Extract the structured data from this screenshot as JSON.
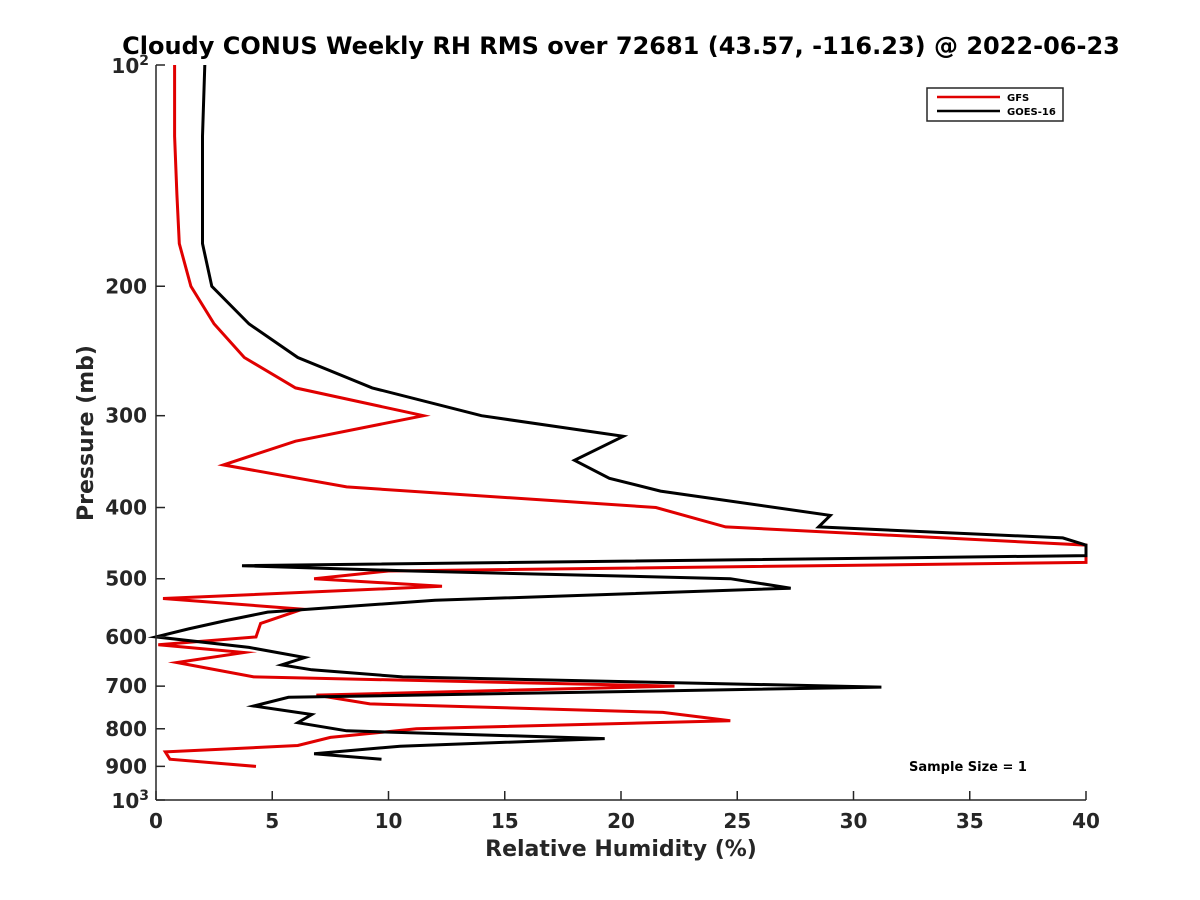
{
  "chart_data": {
    "type": "line",
    "title": "Cloudy CONUS Weekly RH RMS over 72681 (43.57, -116.23) @ 2022-06-23",
    "xlabel": "Relative Humidity (%)",
    "ylabel": "Pressure (mb)",
    "xlim": [
      0,
      40
    ],
    "ylim": [
      100,
      1000
    ],
    "yscale": "log",
    "y_reversed": true,
    "x_ticks": [
      "0",
      "5",
      "10",
      "15",
      "20",
      "25",
      "30",
      "35",
      "40"
    ],
    "y_ticks": [
      {
        "value": 200,
        "label": "200"
      },
      {
        "value": 300,
        "label": "300"
      },
      {
        "value": 400,
        "label": "400"
      },
      {
        "value": 500,
        "label": "500"
      },
      {
        "value": 600,
        "label": "600"
      },
      {
        "value": 700,
        "label": "700"
      },
      {
        "value": 800,
        "label": "800"
      },
      {
        "value": 900,
        "label": "900"
      }
    ],
    "y_end_labels": [
      {
        "value": 100,
        "base": "10",
        "exp": "2"
      },
      {
        "value": 1000,
        "base": "10",
        "exp": "3"
      }
    ],
    "legend_position": "top-right",
    "annotation": "Sample Size = 1",
    "series": [
      {
        "name": "GFS",
        "color": "#e00000",
        "points": [
          [
            0.8,
            100
          ],
          [
            0.8,
            125
          ],
          [
            0.9,
            150
          ],
          [
            1.0,
            175
          ],
          [
            1.5,
            200
          ],
          [
            2.5,
            225
          ],
          [
            3.8,
            250
          ],
          [
            6.0,
            275
          ],
          [
            11.5,
            300
          ],
          [
            6.0,
            325
          ],
          [
            2.9,
            350
          ],
          [
            8.2,
            375
          ],
          [
            21.5,
            400
          ],
          [
            24.5,
            425
          ],
          [
            40.0,
            450
          ],
          [
            40.0,
            475
          ],
          [
            10.0,
            488
          ],
          [
            6.8,
            500
          ],
          [
            12.3,
            512
          ],
          [
            0.3,
            532
          ],
          [
            6.3,
            550
          ],
          [
            4.5,
            575
          ],
          [
            4.3,
            600
          ],
          [
            0.1,
            615
          ],
          [
            3.8,
            630
          ],
          [
            0.9,
            650
          ],
          [
            4.2,
            680
          ],
          [
            22.3,
            700
          ],
          [
            6.9,
            720
          ],
          [
            9.2,
            740
          ],
          [
            21.8,
            760
          ],
          [
            24.7,
            780
          ],
          [
            11.2,
            800
          ],
          [
            7.5,
            822
          ],
          [
            6.1,
            843
          ],
          [
            0.4,
            860
          ],
          [
            0.6,
            880
          ],
          [
            4.3,
            900
          ]
        ]
      },
      {
        "name": "GOES-16",
        "color": "#000000",
        "points": [
          [
            2.1,
            100
          ],
          [
            2.0,
            125
          ],
          [
            2.0,
            150
          ],
          [
            2.0,
            175
          ],
          [
            2.4,
            200
          ],
          [
            4.0,
            225
          ],
          [
            6.1,
            250
          ],
          [
            9.3,
            275
          ],
          [
            14.0,
            300
          ],
          [
            20.1,
            320
          ],
          [
            18.0,
            345
          ],
          [
            19.5,
            365
          ],
          [
            21.7,
            380
          ],
          [
            29.0,
            410
          ],
          [
            28.5,
            425
          ],
          [
            39.0,
            440
          ],
          [
            40.0,
            450
          ],
          [
            40.0,
            465
          ],
          [
            3.7,
            480
          ],
          [
            11.0,
            488
          ],
          [
            24.7,
            500
          ],
          [
            27.3,
            515
          ],
          [
            12.0,
            535
          ],
          [
            4.8,
            555
          ],
          [
            3.0,
            570
          ],
          [
            1.4,
            585
          ],
          [
            0.0,
            600
          ],
          [
            4.0,
            620
          ],
          [
            6.4,
            640
          ],
          [
            5.4,
            655
          ],
          [
            6.7,
            665
          ],
          [
            10.6,
            680
          ],
          [
            31.2,
            702
          ],
          [
            5.7,
            725
          ],
          [
            4.2,
            745
          ],
          [
            6.7,
            765
          ],
          [
            6.1,
            785
          ],
          [
            8.2,
            805
          ],
          [
            19.3,
            825
          ],
          [
            10.5,
            845
          ],
          [
            6.8,
            865
          ],
          [
            9.7,
            880
          ]
        ]
      }
    ]
  }
}
